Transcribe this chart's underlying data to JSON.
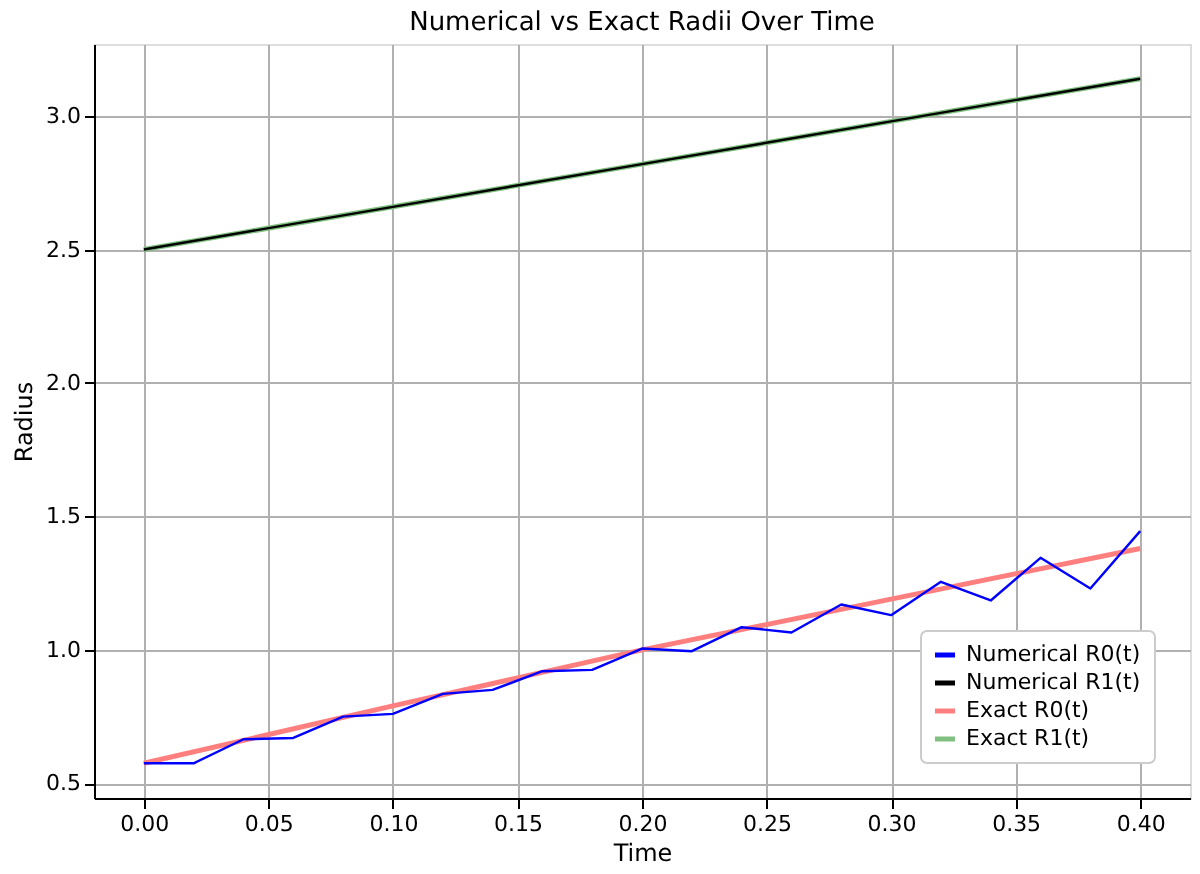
{
  "chart_data": {
    "type": "line",
    "title": "Numerical vs Exact Radii Over Time",
    "xlabel": "Time",
    "ylabel": "Radius",
    "x": [
      0.0,
      0.02,
      0.04,
      0.06,
      0.08,
      0.1,
      0.12,
      0.14,
      0.16,
      0.18,
      0.2,
      0.22,
      0.24,
      0.26,
      0.28,
      0.3,
      0.32,
      0.34,
      0.36,
      0.38,
      0.4
    ],
    "series": [
      {
        "name": "Numerical R0(t)",
        "color": "#0000ff",
        "values": [
          0.575,
          0.575,
          0.665,
          0.67,
          0.75,
          0.76,
          0.835,
          0.85,
          0.92,
          0.925,
          1.005,
          0.995,
          1.085,
          1.065,
          1.17,
          1.13,
          1.255,
          1.185,
          1.345,
          1.23,
          1.445
        ]
      },
      {
        "name": "Numerical R1(t)",
        "color": "#000000",
        "x": [
          0.0,
          0.1,
          0.2,
          0.3,
          0.4
        ],
        "values": [
          2.5,
          2.66,
          2.82,
          2.98,
          3.14
        ]
      },
      {
        "name": "Exact R0(t)",
        "color": "#ff7f7f",
        "x": [
          0.0,
          0.1,
          0.2,
          0.3,
          0.4
        ],
        "values": [
          0.575,
          0.79,
          1.0,
          1.19,
          1.38
        ]
      },
      {
        "name": "Exact R1(t)",
        "color": "#7fbf7f",
        "x": [
          0.0,
          0.1,
          0.2,
          0.3,
          0.4
        ],
        "values": [
          2.5,
          2.66,
          2.82,
          2.98,
          3.14
        ]
      }
    ],
    "xlim": [
      -0.02,
      0.42
    ],
    "xticks": [
      {
        "value": 0,
        "label": "0.00"
      },
      {
        "value": 0.05,
        "label": "0.05"
      },
      {
        "value": 0.1,
        "label": "0.10"
      },
      {
        "value": 0.15,
        "label": "0.15"
      },
      {
        "value": 0.2,
        "label": "0.20"
      },
      {
        "value": 0.25,
        "label": "0.25"
      },
      {
        "value": 0.3,
        "label": "0.30"
      },
      {
        "value": 0.35,
        "label": "0.35"
      },
      {
        "value": 0.4,
        "label": "0.40"
      }
    ],
    "ylim": [
      0.445,
      3.27
    ],
    "yticks": [
      0.5,
      {
        "value": 1,
        "label": "1.0"
      },
      1.5,
      {
        "value": 2,
        "label": "2.0"
      },
      2.5,
      {
        "value": 3,
        "label": "3.0"
      }
    ],
    "grid": true,
    "legend": "bottom right",
    "marker": "none",
    "line_style": "solid"
  }
}
